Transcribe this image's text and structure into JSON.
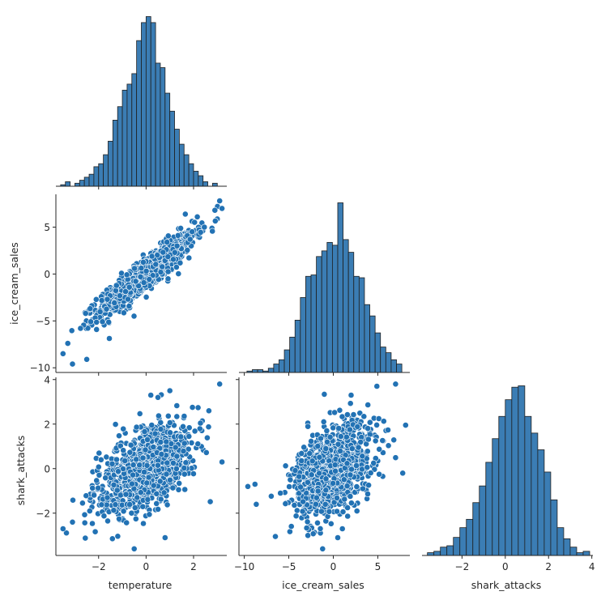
{
  "figure": {
    "type": "pairplot-corner",
    "variables": [
      "temperature",
      "ice_cream_sales",
      "shark_attacks"
    ],
    "colors": {
      "marks": "#2272b4",
      "bars": "#3b7db4",
      "edges": "#1f1f1f",
      "text": "#262626"
    }
  },
  "chart_data": [
    {
      "type": "bar",
      "panel": "diag-temperature",
      "variable": "temperature",
      "bin_edges": [
        -3.6,
        -3.4,
        -3.2,
        -3.0,
        -2.8,
        -2.6,
        -2.4,
        -2.2,
        -2.0,
        -1.8,
        -1.6,
        -1.4,
        -1.2,
        -1.0,
        -0.8,
        -0.6,
        -0.4,
        -0.2,
        0.0,
        0.2,
        0.4,
        0.6,
        0.8,
        1.0,
        1.2,
        1.4,
        1.6,
        1.8,
        2.0,
        2.2,
        2.4,
        2.6,
        2.8,
        3.0,
        3.2
      ],
      "values": [
        1,
        3,
        0,
        2,
        4,
        6,
        8,
        13,
        15,
        21,
        30,
        44,
        53,
        64,
        68,
        75,
        97,
        109,
        113,
        109,
        82,
        79,
        62,
        50,
        38,
        28,
        21,
        15,
        10,
        7,
        3,
        0,
        2,
        0
      ],
      "xlim": [
        -3.8,
        3.4
      ]
    },
    {
      "type": "bar",
      "panel": "diag-ice_cream_sales",
      "variable": "ice_cream_sales",
      "bin_edges": [
        -9.7,
        -9.1,
        -8.5,
        -7.9,
        -7.3,
        -6.7,
        -6.1,
        -5.5,
        -4.9,
        -4.3,
        -3.7,
        -3.1,
        -2.5,
        -1.9,
        -1.3,
        -0.7,
        -0.1,
        0.5,
        1.1,
        1.7,
        2.3,
        2.9,
        3.5,
        4.1,
        4.7,
        5.3,
        5.9,
        6.5,
        7.1,
        7.7
      ],
      "values": [
        1,
        2,
        2,
        1,
        3,
        6,
        9,
        16,
        25,
        37,
        53,
        68,
        69,
        82,
        86,
        92,
        90,
        120,
        94,
        85,
        68,
        67,
        48,
        40,
        28,
        18,
        14,
        9,
        6
      ],
      "xlim": [
        -10.6,
        8.6
      ],
      "xticks": [
        -10,
        -5,
        0,
        5
      ]
    },
    {
      "type": "bar",
      "panel": "diag-shark_attacks",
      "variable": "shark_attacks",
      "bin_edges": [
        -3.6,
        -3.3,
        -3.0,
        -2.7,
        -2.4,
        -2.1,
        -1.8,
        -1.5,
        -1.2,
        -0.9,
        -0.6,
        -0.3,
        0.0,
        0.3,
        0.6,
        0.9,
        1.2,
        1.5,
        1.8,
        2.1,
        2.4,
        2.7,
        3.0,
        3.3,
        3.6,
        3.9
      ],
      "values": [
        2,
        3,
        6,
        7,
        13,
        20,
        26,
        38,
        50,
        67,
        84,
        100,
        112,
        121,
        122,
        100,
        88,
        76,
        60,
        40,
        20,
        12,
        6,
        2,
        3
      ],
      "xlim": [
        -3.85,
        4.05
      ],
      "xticks": [
        -2,
        0,
        2,
        4
      ]
    },
    {
      "type": "scatter",
      "panel": "scatter-ice_cream_sales-vs-temperature",
      "x_variable": "temperature",
      "y_variable": "ice_cream_sales",
      "n_points": 1000,
      "relationship": {
        "slope": 2.0,
        "intercept": 0.0,
        "residual_sd": 0.9,
        "x_sd": 1.0
      },
      "notable_points": [
        [
          -3.5,
          -8.5
        ],
        [
          -3.3,
          -7.4
        ],
        [
          -3.1,
          -9.6
        ],
        [
          -2.5,
          -9.1
        ],
        [
          3.1,
          7.8
        ],
        [
          3.2,
          7.0
        ],
        [
          2.9,
          6.8
        ]
      ],
      "xlim": [
        -3.8,
        3.4
      ],
      "ylim": [
        -10.5,
        8.5
      ]
    },
    {
      "type": "scatter",
      "panel": "scatter-shark_attacks-vs-temperature",
      "x_variable": "temperature",
      "y_variable": "shark_attacks",
      "n_points": 1000,
      "relationship": {
        "slope": 0.5,
        "intercept": 0.0,
        "residual_sd": 0.85,
        "x_sd": 1.0
      },
      "notable_points": [
        [
          3.1,
          3.8
        ],
        [
          0.2,
          3.3
        ],
        [
          0.5,
          3.2
        ],
        [
          1.0,
          3.5
        ],
        [
          -3.5,
          -2.7
        ],
        [
          -3.1,
          -2.4
        ],
        [
          -0.5,
          -3.6
        ],
        [
          0.8,
          -3.1
        ],
        [
          3.2,
          0.3
        ]
      ],
      "xlim": [
        -3.8,
        3.4
      ],
      "ylim": [
        -3.9,
        4.1
      ]
    },
    {
      "type": "scatter",
      "panel": "scatter-shark_attacks-vs-ice_cream_sales",
      "x_variable": "ice_cream_sales",
      "y_variable": "shark_attacks",
      "n_points": 1000,
      "relationship": {
        "slope": 0.2,
        "intercept": 0.0,
        "residual_sd": 0.95,
        "x_sd": 2.3
      },
      "notable_points": [
        [
          -9.6,
          -0.8
        ],
        [
          -8.8,
          -0.7
        ],
        [
          7.0,
          3.8
        ],
        [
          7.8,
          -0.2
        ],
        [
          2.0,
          3.3
        ],
        [
          4.9,
          3.7
        ],
        [
          -1.2,
          -3.6
        ],
        [
          0.5,
          -3.1
        ]
      ],
      "xlim": [
        -10.6,
        8.6
      ],
      "ylim": [
        -3.9,
        4.1
      ]
    }
  ],
  "axes": {
    "row1_y": {
      "label": "ice_cream_sales",
      "ticks": [
        5,
        0,
        -5,
        -10
      ]
    },
    "row2_y": {
      "label": "shark_attacks",
      "ticks": [
        4,
        2,
        0,
        -2
      ]
    },
    "col0_x": {
      "label": "temperature",
      "ticks": [
        -2,
        0,
        2
      ]
    },
    "col1_x": {
      "label": "ice_cream_sales",
      "ticks": [
        -10,
        -5,
        0,
        5
      ]
    },
    "col2_x": {
      "label": "shark_attacks",
      "ticks": [
        -2,
        0,
        2,
        4
      ]
    }
  }
}
